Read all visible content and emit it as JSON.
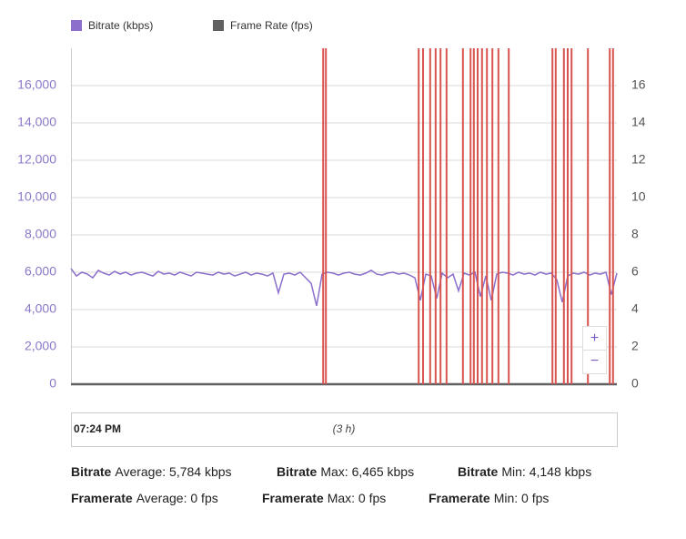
{
  "chart_data": {
    "type": "line",
    "xlim": [
      0,
      100
    ],
    "ylim": [
      0,
      18000
    ],
    "yticks": [
      {
        "value": 0,
        "label": "0"
      },
      {
        "value": 2000,
        "label": "2,000"
      },
      {
        "value": 4000,
        "label": "4,000"
      },
      {
        "value": 6000,
        "label": "6,000"
      },
      {
        "value": 8000,
        "label": "8,000"
      },
      {
        "value": 10000,
        "label": "10,000"
      },
      {
        "value": 12000,
        "label": "12,000"
      },
      {
        "value": 14000,
        "label": "14,000"
      },
      {
        "value": 16000,
        "label": "16,000"
      }
    ],
    "y2lim": [
      0,
      18
    ],
    "y2ticks": [
      0,
      2,
      4,
      6,
      8,
      10,
      12,
      14,
      16
    ],
    "grid": true,
    "legend": "top-left",
    "series": [
      {
        "name": "Bitrate (kbps)",
        "color": "#8c6fcb",
        "values": [
          6200,
          5800,
          6000,
          5900,
          5700,
          6100,
          5950,
          5850,
          6050,
          5900,
          6000,
          5850,
          5950,
          6000,
          5900,
          5800,
          6050,
          5900,
          5950,
          5850,
          6000,
          5900,
          5800,
          6000,
          5950,
          5900,
          5850,
          6000,
          5900,
          5950,
          5800,
          5900,
          6000,
          5850,
          5950,
          5900,
          5800,
          5950,
          4900,
          5900,
          5950,
          5850,
          6000,
          5700,
          5400,
          4200,
          5900,
          6000,
          5950,
          5850,
          5950,
          6000,
          5900,
          5850,
          5950,
          6100,
          5900,
          5850,
          5950,
          6000,
          5900,
          5950,
          5850,
          5700,
          4500,
          5900,
          5800,
          4600,
          5950,
          5700,
          5900,
          5000,
          5950,
          5850,
          6000,
          4700,
          5800,
          4500,
          5900,
          6000,
          5950,
          5850,
          6000,
          5900,
          5950,
          5850,
          6000,
          5900,
          5950,
          5600,
          4400,
          5800,
          5950,
          5900,
          6000,
          5850,
          5950,
          5900,
          6000,
          4800,
          5950
        ]
      },
      {
        "name": "Frame Rate (fps)",
        "color": "#606060",
        "axis": "y2",
        "values": [
          0,
          0,
          0,
          0,
          0,
          0,
          0,
          0,
          0,
          0,
          0,
          0,
          0,
          0,
          0,
          0,
          0,
          0,
          0,
          0,
          0,
          0,
          0,
          0,
          0,
          0,
          0,
          0,
          0,
          0,
          0,
          0,
          0,
          0,
          0,
          0,
          0,
          0,
          0,
          0,
          0,
          0,
          0,
          0,
          0,
          0,
          0,
          0,
          0,
          0,
          0,
          0,
          0,
          0,
          0,
          0,
          0,
          0,
          0,
          0,
          0,
          0,
          0,
          0,
          0,
          0,
          0,
          0,
          0,
          0,
          0,
          0,
          0,
          0,
          0,
          0,
          0,
          0,
          0,
          0,
          0,
          0,
          0,
          0,
          0,
          0,
          0,
          0,
          0,
          0,
          0,
          0,
          0,
          0,
          0,
          0,
          0,
          0,
          0,
          0,
          0
        ]
      }
    ],
    "event_markers": {
      "color": "#d9534f",
      "x": [
        46.2,
        46.7,
        63.7,
        64.5,
        65.8,
        66.8,
        67.7,
        68.8,
        71.8,
        73.2,
        73.8,
        74.5,
        75.3,
        76.2,
        77.2,
        78.3,
        80.2,
        88.2,
        88.8,
        90.3,
        91,
        91.7,
        94.7,
        98.7,
        99.3
      ]
    },
    "navigator": {
      "start": "07:24 PM",
      "span": "(3 h)"
    },
    "zoom": {
      "in": "+",
      "out": "−"
    },
    "stats": [
      [
        {
          "metric": "Bitrate",
          "text": "Average: 5,784 kbps"
        },
        {
          "metric": "Bitrate",
          "text": "Max: 6,465 kbps"
        },
        {
          "metric": "Bitrate",
          "text": "Min: 4,148 kbps"
        }
      ],
      [
        {
          "metric": "Framerate",
          "text": "Average: 0 fps"
        },
        {
          "metric": "Framerate",
          "text": "Max: 0 fps"
        },
        {
          "metric": "Framerate",
          "text": "Min: 0 fps"
        }
      ]
    ]
  }
}
